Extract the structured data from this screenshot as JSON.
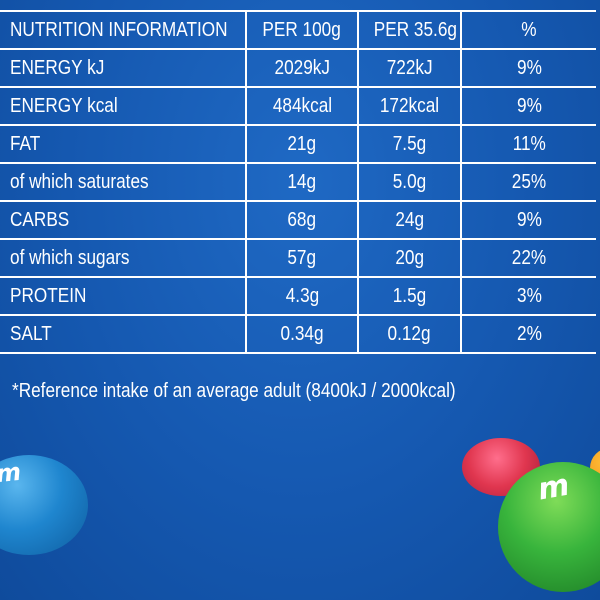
{
  "table": {
    "headers": [
      "NUTRITION INFORMATION",
      "PER 100g",
      "PER 35.6g",
      "%"
    ],
    "rows": [
      {
        "name": "ENERGY kJ",
        "per_100g": "2029kJ",
        "per_portion": "722kJ",
        "percent": "9%"
      },
      {
        "name": "ENERGY kcal",
        "per_100g": "484kcal",
        "per_portion": "172kcal",
        "percent": "9%"
      },
      {
        "name": "FAT",
        "per_100g": "21g",
        "per_portion": "7.5g",
        "percent": "11%"
      },
      {
        "name": "of which saturates",
        "per_100g": "14g",
        "per_portion": "5.0g",
        "percent": "25%"
      },
      {
        "name": "CARBS",
        "per_100g": "68g",
        "per_portion": "24g",
        "percent": "9%"
      },
      {
        "name": "of which sugars",
        "per_100g": "57g",
        "per_portion": "20g",
        "percent": "22%"
      },
      {
        "name": "PROTEIN",
        "per_100g": "4.3g",
        "per_portion": "1.5g",
        "percent": "3%"
      },
      {
        "name": "SALT",
        "per_100g": "0.34g",
        "per_portion": "0.12g",
        "percent": "2%"
      }
    ]
  },
  "footnote": "*Reference intake of an average adult (8400kJ / 2000kcal)",
  "candies": {
    "blue_mark": "m",
    "green_mark": "m"
  },
  "colors": {
    "background": "#1558b0",
    "text": "#ffffff",
    "candy_blue": "#1f86cf",
    "candy_red": "#e0364f",
    "candy_green": "#38b43c",
    "candy_orange": "#ef8f12"
  }
}
